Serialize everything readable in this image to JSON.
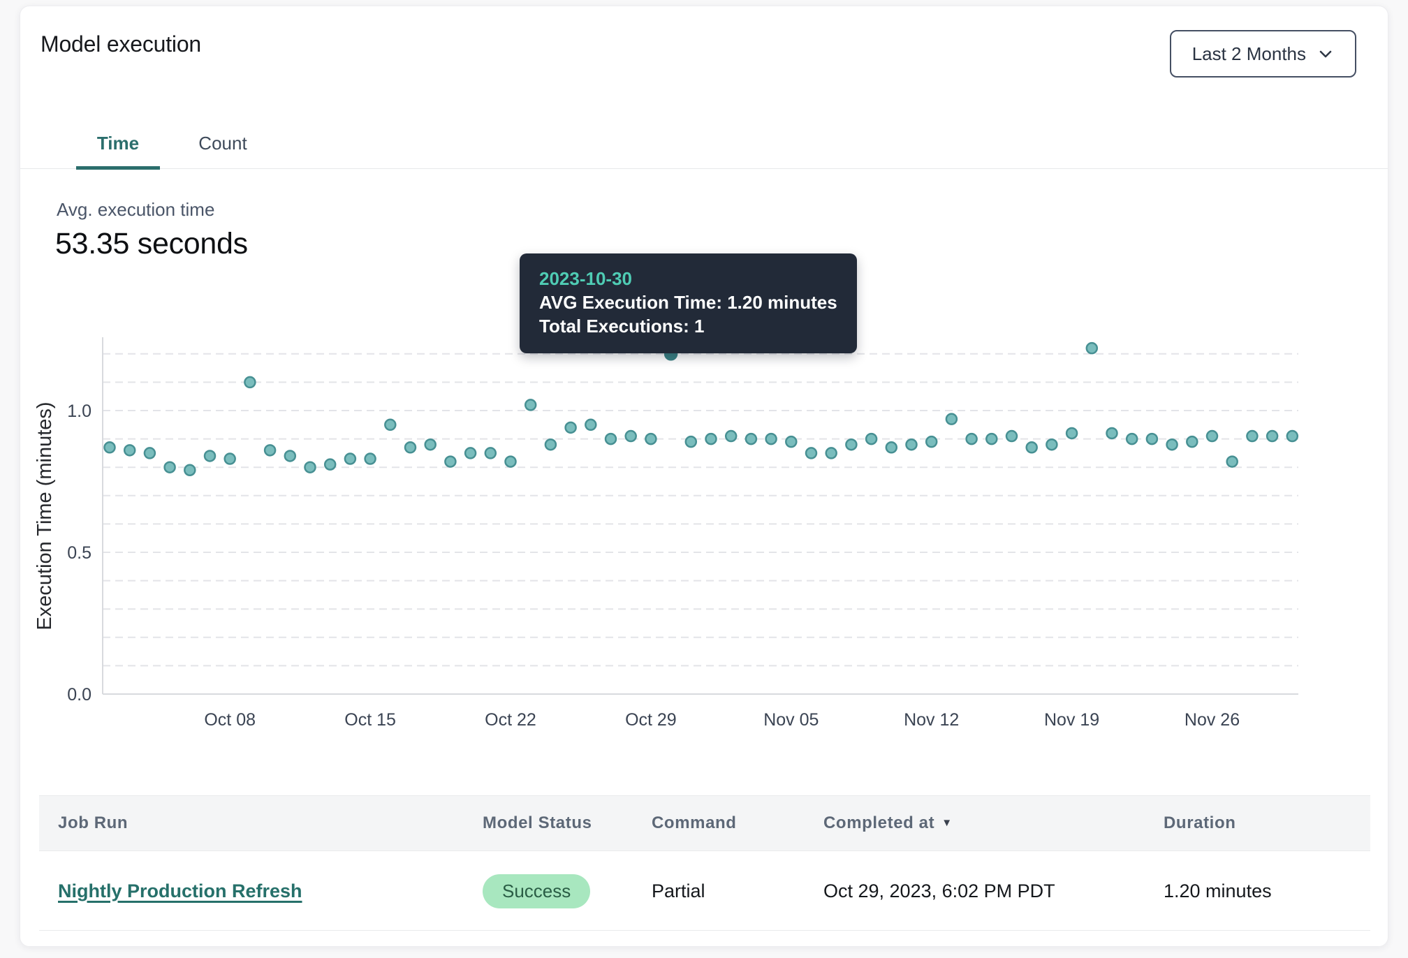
{
  "header": {
    "title": "Model execution",
    "range_selector": {
      "label": "Last 2 Months"
    }
  },
  "tabs": [
    {
      "label": "Time",
      "active": true
    },
    {
      "label": "Count",
      "active": false
    }
  ],
  "summary": {
    "label": "Avg. execution time",
    "value": "53.35 seconds"
  },
  "tooltip": {
    "date": "2023-10-30",
    "avg_line": "AVG Execution Time: 1.20 minutes",
    "total_line": "Total Executions: 1"
  },
  "chart_data": {
    "type": "scatter",
    "ylabel": "Execution Time (minutes)",
    "xlabel": "",
    "ylim": [
      0,
      1.26
    ],
    "grid": "dashed horizontal every 0.1",
    "y_ticks": [
      "0.0",
      "0.5",
      "1.0"
    ],
    "y_tick_values": [
      0.0,
      0.5,
      1.0
    ],
    "x": [
      "2023-10-02",
      "2023-10-03",
      "2023-10-04",
      "2023-10-05",
      "2023-10-06",
      "2023-10-07",
      "2023-10-08",
      "2023-10-09",
      "2023-10-10",
      "2023-10-11",
      "2023-10-12",
      "2023-10-13",
      "2023-10-14",
      "2023-10-15",
      "2023-10-16",
      "2023-10-17",
      "2023-10-18",
      "2023-10-19",
      "2023-10-20",
      "2023-10-21",
      "2023-10-22",
      "2023-10-23",
      "2023-10-24",
      "2023-10-25",
      "2023-10-26",
      "2023-10-27",
      "2023-10-28",
      "2023-10-29",
      "2023-10-30",
      "2023-10-31",
      "2023-11-01",
      "2023-11-02",
      "2023-11-03",
      "2023-11-04",
      "2023-11-05",
      "2023-11-06",
      "2023-11-07",
      "2023-11-08",
      "2023-11-09",
      "2023-11-10",
      "2023-11-11",
      "2023-11-12",
      "2023-11-13",
      "2023-11-14",
      "2023-11-15",
      "2023-11-16",
      "2023-11-17",
      "2023-11-18",
      "2023-11-19",
      "2023-11-20",
      "2023-11-21",
      "2023-11-22",
      "2023-11-23",
      "2023-11-24",
      "2023-11-25",
      "2023-11-26",
      "2023-11-27",
      "2023-11-28",
      "2023-11-29",
      "2023-11-30"
    ],
    "values": [
      0.87,
      0.86,
      0.85,
      0.8,
      0.79,
      0.84,
      0.83,
      1.1,
      0.86,
      0.84,
      0.8,
      0.81,
      0.83,
      0.83,
      0.95,
      0.87,
      0.88,
      0.82,
      0.85,
      0.85,
      0.82,
      1.02,
      0.88,
      0.94,
      0.95,
      0.9,
      0.91,
      0.9,
      1.2,
      0.89,
      0.9,
      0.91,
      0.9,
      0.9,
      0.89,
      0.85,
      0.85,
      0.88,
      0.9,
      0.87,
      0.88,
      0.89,
      0.97,
      0.9,
      0.9,
      0.91,
      0.87,
      0.88,
      0.92,
      1.22,
      0.92,
      0.9,
      0.9,
      0.88,
      0.89,
      0.91,
      0.82,
      0.91,
      0.91,
      0.91
    ],
    "x_ticks": [
      {
        "label": "Oct 08",
        "i": 6
      },
      {
        "label": "Oct 15",
        "i": 13
      },
      {
        "label": "Oct 22",
        "i": 20
      },
      {
        "label": "Oct 29",
        "i": 27
      },
      {
        "label": "Nov 05",
        "i": 34
      },
      {
        "label": "Nov 12",
        "i": 41
      },
      {
        "label": "Nov 19",
        "i": 48
      },
      {
        "label": "Nov 26",
        "i": 55
      }
    ],
    "highlight": {
      "i": 28,
      "date": "2023-10-30",
      "value": 1.2
    },
    "colors": {
      "point_fill": "#7abdbd",
      "point_stroke": "#479093",
      "highlight_fill": "#3a8084",
      "grid": "#e3e4e8",
      "spine": "#d8dade",
      "tick_text": "#3b4453",
      "axis_title": "#26282c"
    }
  },
  "table": {
    "columns": [
      {
        "label": "Job Run",
        "sortable": false
      },
      {
        "label": "Model Status",
        "sortable": false
      },
      {
        "label": "Command",
        "sortable": false
      },
      {
        "label": "Completed at",
        "sortable": true,
        "sort_icon": "triangle-down"
      },
      {
        "label": "Duration",
        "sortable": false
      }
    ],
    "rows": [
      {
        "job_run": "Nightly Production Refresh",
        "model_status": "Success",
        "status_color": "#a8e7bf",
        "command": "Partial",
        "completed_at": "Oct 29, 2023, 6:02 PM PDT",
        "duration": "1.20 minutes"
      }
    ]
  },
  "accent_colors": {
    "teal": "#2b6e6c",
    "tooltip_bg": "#222a38",
    "tooltip_date": "#4fccb4"
  }
}
